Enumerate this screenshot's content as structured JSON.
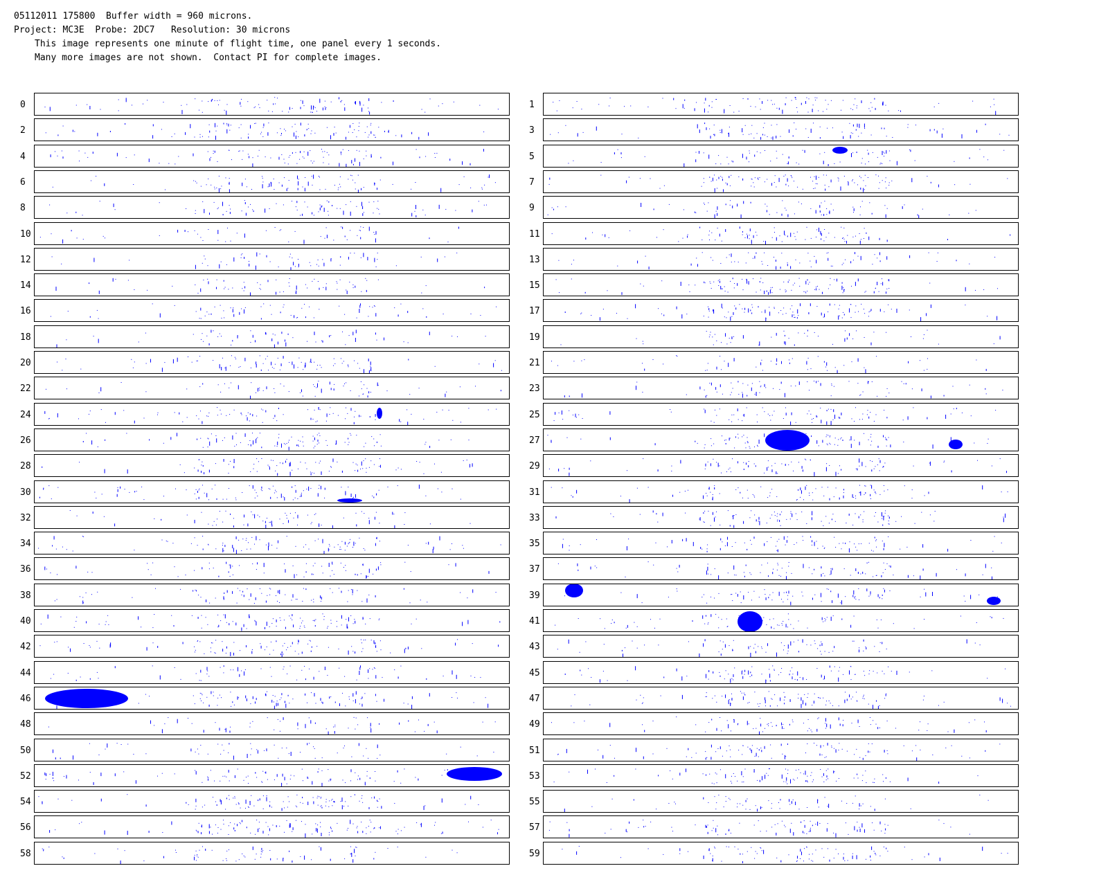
{
  "header": {
    "line1": "05112011 175800  Buffer width = 960 microns.",
    "line2": "Project: MC3E  Probe: 2DC7   Resolution: 30 microns",
    "line3": "This image represents one minute of flight time, one panel every 1 seconds.",
    "line4": "Many more images are not shown.  Contact PI for complete images."
  },
  "colors": {
    "particle": "#0000ff",
    "border": "#000000",
    "background": "#ffffff"
  },
  "panels": [
    {
      "label": "0"
    },
    {
      "label": "1"
    },
    {
      "label": "2"
    },
    {
      "label": "3"
    },
    {
      "label": "4"
    },
    {
      "label": "5"
    },
    {
      "label": "6"
    },
    {
      "label": "7"
    },
    {
      "label": "8"
    },
    {
      "label": "9"
    },
    {
      "label": "10"
    },
    {
      "label": "11"
    },
    {
      "label": "12"
    },
    {
      "label": "13"
    },
    {
      "label": "14"
    },
    {
      "label": "15"
    },
    {
      "label": "16"
    },
    {
      "label": "17"
    },
    {
      "label": "18"
    },
    {
      "label": "19"
    },
    {
      "label": "20"
    },
    {
      "label": "21"
    },
    {
      "label": "22"
    },
    {
      "label": "23"
    },
    {
      "label": "24"
    },
    {
      "label": "25"
    },
    {
      "label": "26"
    },
    {
      "label": "27"
    },
    {
      "label": "28"
    },
    {
      "label": "29"
    },
    {
      "label": "30"
    },
    {
      "label": "31"
    },
    {
      "label": "32"
    },
    {
      "label": "33"
    },
    {
      "label": "34"
    },
    {
      "label": "35"
    },
    {
      "label": "36"
    },
    {
      "label": "37"
    },
    {
      "label": "38"
    },
    {
      "label": "39"
    },
    {
      "label": "40"
    },
    {
      "label": "41"
    },
    {
      "label": "42"
    },
    {
      "label": "43"
    },
    {
      "label": "44"
    },
    {
      "label": "45"
    },
    {
      "label": "46"
    },
    {
      "label": "47"
    },
    {
      "label": "48"
    },
    {
      "label": "49"
    },
    {
      "label": "50"
    },
    {
      "label": "51"
    },
    {
      "label": "52"
    },
    {
      "label": "53"
    },
    {
      "label": "54"
    },
    {
      "label": "55"
    },
    {
      "label": "56"
    },
    {
      "label": "57"
    },
    {
      "label": "58"
    },
    {
      "label": "59"
    }
  ]
}
